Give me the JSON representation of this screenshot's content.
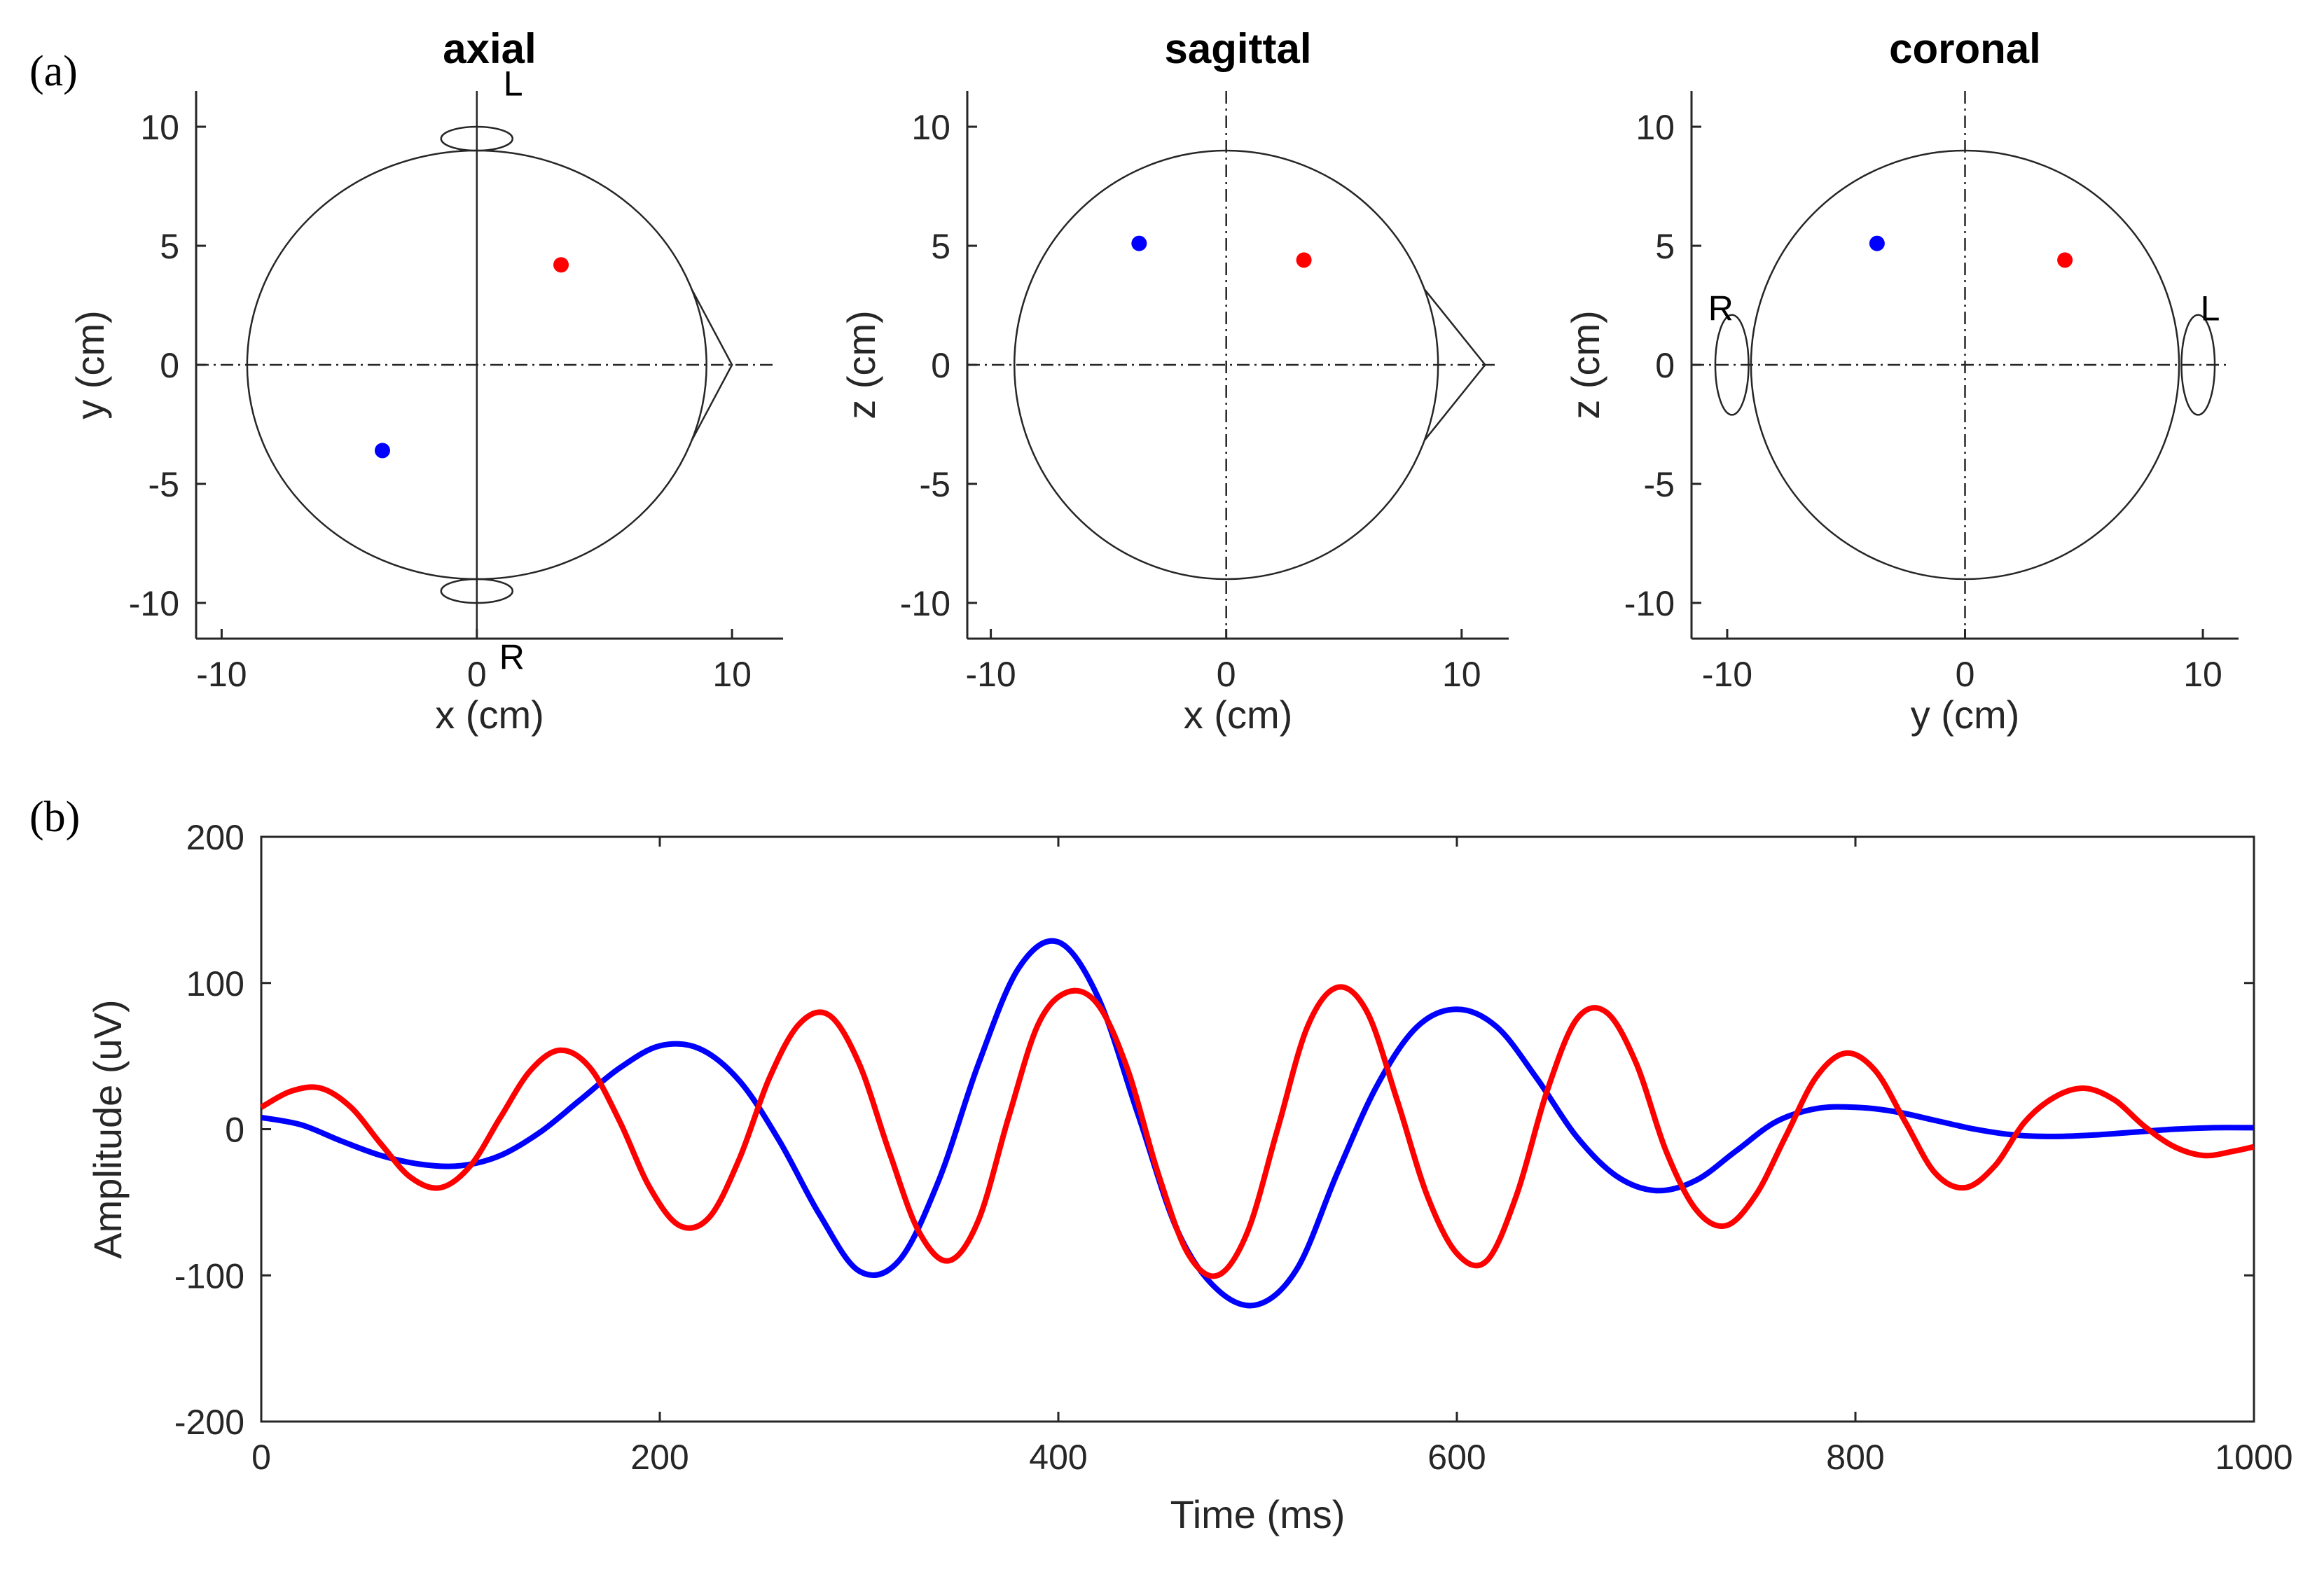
{
  "figure": {
    "panel_a_label": "(a)",
    "panel_b_label": "(b)"
  },
  "chart_data": [
    {
      "type": "scatter",
      "title": "axial",
      "xlabel": "x (cm)",
      "ylabel": "y (cm)",
      "xlim": [
        -11,
        12
      ],
      "ylim": [
        -11.5,
        11.5
      ],
      "xticks": [
        -10,
        0,
        10
      ],
      "yticks": [
        -10,
        -5,
        0,
        5,
        10
      ],
      "xtick_labels": [
        "-10",
        "0",
        "10"
      ],
      "ytick_labels": [
        "-10",
        "-5",
        "0",
        "5",
        "10"
      ],
      "head_radius": 9,
      "head_outline": "nose-right",
      "ear_labels": [
        "L",
        "R"
      ],
      "points": [
        {
          "name": "red source",
          "x": 3.3,
          "y": 4.2,
          "color": "#ff0000"
        },
        {
          "name": "blue source",
          "x": -3.7,
          "y": -3.6,
          "color": "#0000ff"
        }
      ]
    },
    {
      "type": "scatter",
      "title": "sagittal",
      "xlabel": "x (cm)",
      "ylabel": "z (cm)",
      "xlim": [
        -11,
        12
      ],
      "ylim": [
        -11.5,
        11.5
      ],
      "xticks": [
        -10,
        0,
        10
      ],
      "yticks": [
        -10,
        -5,
        0,
        5,
        10
      ],
      "xtick_labels": [
        "-10",
        "0",
        "10"
      ],
      "ytick_labels": [
        "-10",
        "-5",
        "0",
        "5",
        "10"
      ],
      "head_radius": 9,
      "head_outline": "nose-right",
      "points": [
        {
          "name": "red source",
          "x": 3.3,
          "y": 4.4,
          "color": "#ff0000"
        },
        {
          "name": "blue source",
          "x": -3.7,
          "y": 5.1,
          "color": "#0000ff"
        }
      ]
    },
    {
      "type": "scatter",
      "title": "coronal",
      "xlabel": "y (cm)",
      "ylabel": "z (cm)",
      "xlim": [
        -11.5,
        11.5
      ],
      "ylim": [
        -11.5,
        11.5
      ],
      "xticks": [
        -10,
        0,
        10
      ],
      "yticks": [
        -10,
        -5,
        0,
        5,
        10
      ],
      "xtick_labels": [
        "-10",
        "0",
        "10"
      ],
      "ytick_labels": [
        "-10",
        "-5",
        "0",
        "5",
        "10"
      ],
      "head_radius": 9,
      "head_outline": "ears-left-right",
      "ear_labels": [
        "R",
        "L"
      ],
      "points": [
        {
          "name": "red source",
          "x": 4.2,
          "y": 4.4,
          "color": "#ff0000"
        },
        {
          "name": "blue source",
          "x": -3.7,
          "y": 5.1,
          "color": "#0000ff"
        }
      ]
    },
    {
      "type": "line",
      "title": "",
      "xlabel": "Time (ms)",
      "ylabel": "Amplitude (uV)",
      "xlim": [
        0,
        1000
      ],
      "ylim": [
        -200,
        200
      ],
      "xticks": [
        0,
        200,
        400,
        600,
        800,
        1000
      ],
      "yticks": [
        -200,
        -100,
        0,
        100,
        200
      ],
      "xtick_labels": [
        "0",
        "200",
        "400",
        "600",
        "800",
        "1000"
      ],
      "ytick_labels": [
        "-200",
        "-100",
        "0",
        "100",
        "200"
      ],
      "series": [
        {
          "name": "blue",
          "color": "#0000ff",
          "x": [
            0,
            20,
            40,
            60,
            80,
            100,
            120,
            140,
            160,
            180,
            200,
            220,
            240,
            260,
            280,
            300,
            320,
            340,
            360,
            380,
            400,
            420,
            440,
            460,
            480,
            500,
            520,
            540,
            560,
            580,
            600,
            620,
            640,
            660,
            680,
            700,
            720,
            740,
            760,
            780,
            800,
            820,
            840,
            860,
            880,
            900,
            920,
            940,
            960,
            980,
            1000
          ],
          "values": [
            8,
            3,
            -8,
            -18,
            -24,
            -25,
            -18,
            -2,
            20,
            42,
            57,
            55,
            33,
            -8,
            -58,
            -97,
            -90,
            -35,
            45,
            110,
            128,
            90,
            10,
            -70,
            -110,
            -120,
            -95,
            -30,
            30,
            70,
            82,
            70,
            35,
            -5,
            -32,
            -42,
            -35,
            -15,
            5,
            14,
            15,
            12,
            6,
            0,
            -4,
            -5,
            -4,
            -2,
            0,
            1,
            1
          ]
        },
        {
          "name": "red",
          "color": "#ff0000",
          "x": [
            0,
            15,
            30,
            45,
            60,
            75,
            90,
            105,
            120,
            135,
            150,
            165,
            180,
            195,
            210,
            225,
            240,
            255,
            270,
            285,
            300,
            315,
            330,
            345,
            360,
            375,
            390,
            405,
            420,
            435,
            450,
            465,
            480,
            495,
            510,
            525,
            540,
            555,
            570,
            585,
            600,
            615,
            630,
            645,
            660,
            675,
            690,
            705,
            720,
            735,
            750,
            765,
            780,
            795,
            810,
            825,
            840,
            855,
            870,
            885,
            900,
            915,
            930,
            945,
            960,
            975,
            990,
            1000
          ],
          "values": [
            15,
            26,
            28,
            15,
            -10,
            -33,
            -40,
            -25,
            8,
            40,
            54,
            42,
            5,
            -40,
            -66,
            -60,
            -20,
            35,
            72,
            78,
            45,
            -15,
            -70,
            -90,
            -62,
            8,
            72,
            94,
            85,
            40,
            -30,
            -85,
            -100,
            -70,
            0,
            70,
            97,
            80,
            20,
            -45,
            -85,
            -90,
            -45,
            25,
            75,
            80,
            45,
            -15,
            -55,
            -66,
            -45,
            -5,
            35,
            52,
            40,
            5,
            -30,
            -40,
            -25,
            5,
            22,
            28,
            20,
            2,
            -12,
            -18,
            -15,
            -12
          ]
        }
      ]
    }
  ]
}
